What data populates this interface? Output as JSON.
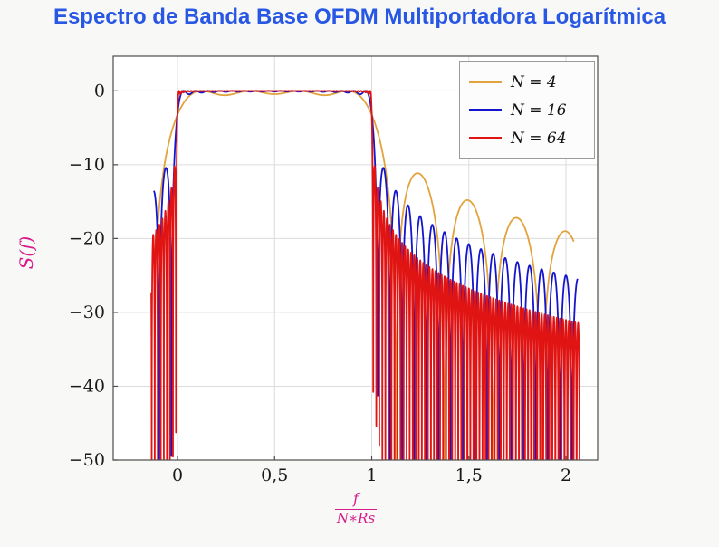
{
  "page": {
    "background": "#f8f8f6"
  },
  "chart_data": {
    "type": "line",
    "title": "Espectro de Banda Base OFDM Multiportadora Logarítmica",
    "title_color": "#2857e4",
    "xlabel": "f/(N*Rs)",
    "xlabel_numerator": "f",
    "xlabel_denominator": "N∗Rs",
    "ylabel": "S(f)",
    "axis_label_color": "#d81b8c",
    "xlim": [
      -0.331,
      2.163
    ],
    "ylim": [
      -50,
      4.7
    ],
    "x_ticks": [
      0,
      0.5,
      1,
      1.5,
      2
    ],
    "x_tick_labels": [
      "0",
      "0,5",
      "1",
      "1,5",
      "2"
    ],
    "y_ticks": [
      0,
      -10,
      -20,
      -30,
      -40,
      -50
    ],
    "y_tick_labels": [
      "0",
      "−10",
      "−20",
      "−30",
      "−40",
      "−50"
    ],
    "grid": true,
    "grid_color": "#dcdcdc",
    "axis_color": "#4d4d4d",
    "tick_text_color": "#1a1a1a",
    "legend_position": "top-right",
    "series": [
      {
        "name": "N = 4",
        "N": 4,
        "color": "#e2a33c",
        "x_range": [
          -0.11,
          2.04
        ]
      },
      {
        "name": "N = 16",
        "N": 16,
        "color": "#1414cc",
        "x_range": [
          -0.122,
          2.06
        ]
      },
      {
        "name": "N = 64",
        "N": 64,
        "color": "#e11414",
        "x_range": [
          -0.135,
          2.07
        ]
      }
    ],
    "model": "S_dB(x) = 10*log10( sum_{k=0..N-1} sinc^2(N*x - k - 0.5) ), sinc(u)=sin(pi*u)/(pi*u), x = f/(N*Rs)",
    "readings": {
      "passband_level_db": 0,
      "passband_x": [
        0,
        1
      ],
      "first_sidelobe_db": -12,
      "envelope_at_x2_db": {
        "N4": -23,
        "N16": -24,
        "N64": -30
      },
      "clip_floor_db": -50
    }
  }
}
